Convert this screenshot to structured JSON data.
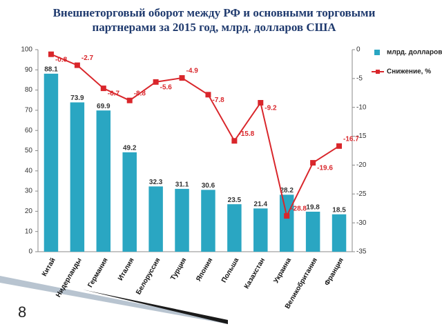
{
  "slide_number": "8",
  "chart_data": {
    "type": "bar",
    "title": "Внешнеторговый оборот между РФ и основными торговыми партнерами за 2015 год, млрд. долларов США",
    "categories": [
      "Китай",
      "Нидерланды",
      "Германия",
      "Италия",
      "Белоруссия",
      "Турция",
      "Япония",
      "Польша",
      "Казахстан",
      "Украина",
      "Великобритания",
      "Франция"
    ],
    "series": [
      {
        "name": "млрд. долларов",
        "color": "#2aa6c2",
        "values": [
          88.1,
          73.9,
          69.9,
          49.2,
          32.3,
          31.1,
          30.6,
          23.5,
          21.4,
          28.2,
          19.8,
          18.5
        ]
      },
      {
        "name": "Снижение, %",
        "color": "#d9262b",
        "axis": "y2",
        "type": "line",
        "values": [
          -0.8,
          -2.7,
          -6.7,
          -8.8,
          -5.6,
          -4.9,
          -7.8,
          -15.8,
          -9.2,
          -28.8,
          -19.6,
          -16.7
        ]
      }
    ],
    "ylim": [
      0,
      100
    ],
    "yticks": [
      0,
      10,
      20,
      30,
      40,
      50,
      60,
      70,
      80,
      90,
      100
    ],
    "y2lim": [
      -35,
      0
    ],
    "y2ticks": [
      0,
      -5,
      -10,
      -15,
      -20,
      -25,
      -30,
      -35
    ],
    "legend": "right"
  }
}
